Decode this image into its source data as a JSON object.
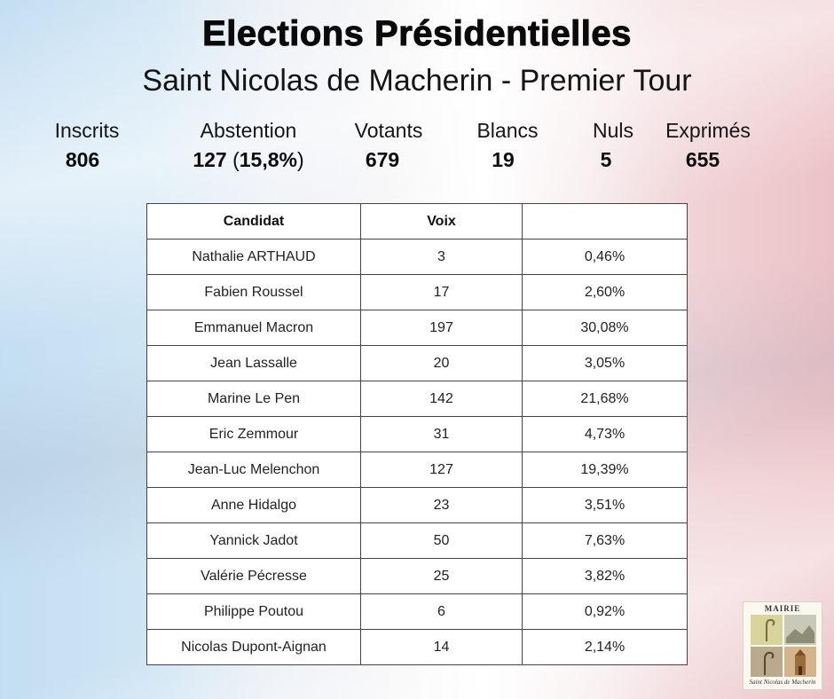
{
  "header": {
    "title": "Elections Présidentielles",
    "subtitle": "Saint Nicolas de Macherin - Premier Tour"
  },
  "stats": {
    "inscrits": {
      "label": "Inscrits",
      "value": "806"
    },
    "abstention": {
      "label": "Abstention",
      "value": "127",
      "paren_open": "(",
      "percent": "15,8%",
      "paren_close": ")"
    },
    "votants": {
      "label": "Votants",
      "value": "679"
    },
    "blancs": {
      "label": "Blancs",
      "value": "19"
    },
    "nuls": {
      "label": "Nuls",
      "value": "5"
    },
    "exprimes": {
      "label": "Exprimés",
      "value": "655"
    }
  },
  "table": {
    "headers": [
      "Candidat",
      "Voix",
      ""
    ],
    "rows": [
      [
        "Nathalie ARTHAUD",
        "3",
        "0,46%"
      ],
      [
        "Fabien Roussel",
        "17",
        "2,60%"
      ],
      [
        "Emmanuel Macron",
        "197",
        "30,08%"
      ],
      [
        "Jean Lassalle",
        "20",
        "3,05%"
      ],
      [
        "Marine Le Pen",
        "142",
        "21,68%"
      ],
      [
        "Eric Zemmour",
        "31",
        "4,73%"
      ],
      [
        "Jean-Luc Melenchon",
        "127",
        "19,39%"
      ],
      [
        "Anne Hidalgo",
        "23",
        "3,51%"
      ],
      [
        "Yannick Jadot",
        "50",
        "7,63%"
      ],
      [
        "Valérie Pécresse",
        "25",
        "3,82%"
      ],
      [
        "Philippe Poutou",
        "6",
        "0,92%"
      ],
      [
        "Nicolas Dupont-Aignan",
        "14",
        "2,14%"
      ]
    ]
  },
  "logo": {
    "top_text": "MAIRIE",
    "bottom_text": "Saint Nicolas de Macherin"
  },
  "colors": {
    "flag_blue": "#c3def2",
    "flag_white": "#ffffff",
    "flag_red": "#ecc2c6"
  }
}
